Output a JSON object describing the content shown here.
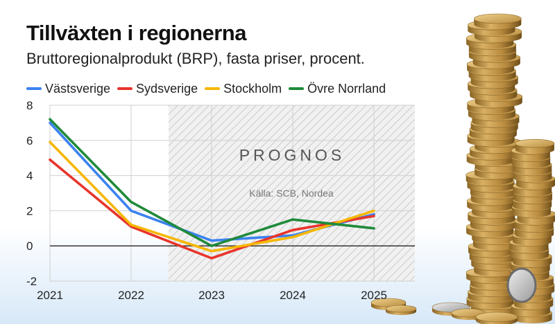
{
  "title": "Tillväxten i regionerna",
  "subtitle": "Bruttoregionalprodukt (BRP), fasta priser, procent.",
  "chart_data": {
    "type": "line",
    "x": [
      "2021",
      "2022",
      "2023",
      "2024",
      "2025"
    ],
    "ylim": [
      -2,
      8
    ],
    "yticks": [
      "-2",
      "0",
      "2",
      "4",
      "6",
      "8"
    ],
    "series": [
      {
        "name": "Västsverige",
        "color": "#3b82f0",
        "values": [
          7.0,
          2.0,
          0.3,
          0.6,
          1.8
        ]
      },
      {
        "name": "Sydsverige",
        "color": "#e8352b",
        "values": [
          4.9,
          1.1,
          -0.7,
          0.9,
          1.7
        ]
      },
      {
        "name": "Stockholm",
        "color": "#f5b700",
        "values": [
          5.9,
          1.2,
          -0.3,
          0.5,
          2.0
        ]
      },
      {
        "name": "Övre Norrland",
        "color": "#1f8a3a",
        "values": [
          7.2,
          2.5,
          0.0,
          1.5,
          1.0
        ]
      }
    ],
    "annotations": {
      "prognos_label": "PROGNOS",
      "source": "Källa: SCB, Nordea"
    },
    "grid": true,
    "legend_position": "top-left"
  }
}
